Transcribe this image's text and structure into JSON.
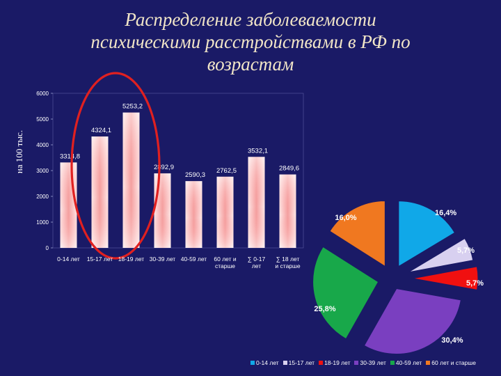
{
  "title": {
    "line1": "Распределение заболеваемости",
    "line2": "психическими расстройствами в РФ по",
    "line3": "возрастам"
  },
  "chart_data": [
    {
      "type": "bar",
      "ylabel": "на 100 тыс.",
      "ylim": [
        0,
        6000
      ],
      "yticks": [
        "0",
        "1000",
        "2000",
        "3000",
        "4000",
        "5000",
        "6000"
      ],
      "categories": [
        [
          "0-14 лет"
        ],
        [
          "15-17 лет"
        ],
        [
          "18-19 лет"
        ],
        [
          "30-39 лет"
        ],
        [
          "40-59 лет"
        ],
        [
          "60 лет и",
          "старше"
        ],
        [
          "∑ 0-17",
          "лет"
        ],
        [
          "∑ 18 лет",
          "и старше"
        ]
      ],
      "values": [
        3314.8,
        4324.1,
        5253.2,
        2892.9,
        2590.3,
        2762.5,
        3532.1,
        2849.6
      ],
      "value_labels": [
        "3314,8",
        "4324,1",
        "5253,2",
        "2892,9",
        "2590,3",
        "2762,5",
        "3532,1",
        "2849,6"
      ],
      "highlight": {
        "categories": [
          "15-17 лет",
          "18-19 лет"
        ],
        "color": "#e02020"
      }
    },
    {
      "type": "pie",
      "categories": [
        "0-14 лет",
        "15-17 лет",
        "18-19 лет",
        "30-39 лет",
        "40-59 лет",
        "60 лет и старше"
      ],
      "values": [
        16.4,
        5.7,
        5.7,
        30.4,
        25.8,
        16.0
      ],
      "value_labels": [
        "16,4%",
        "5,7%",
        "5,7%",
        "30,4%",
        "25,8%",
        "16,0%"
      ],
      "colors": [
        "#10a8e8",
        "#d8d0f0",
        "#f01010",
        "#7a3fc0",
        "#18a84a",
        "#f07820"
      ],
      "legend": "bottom"
    }
  ]
}
